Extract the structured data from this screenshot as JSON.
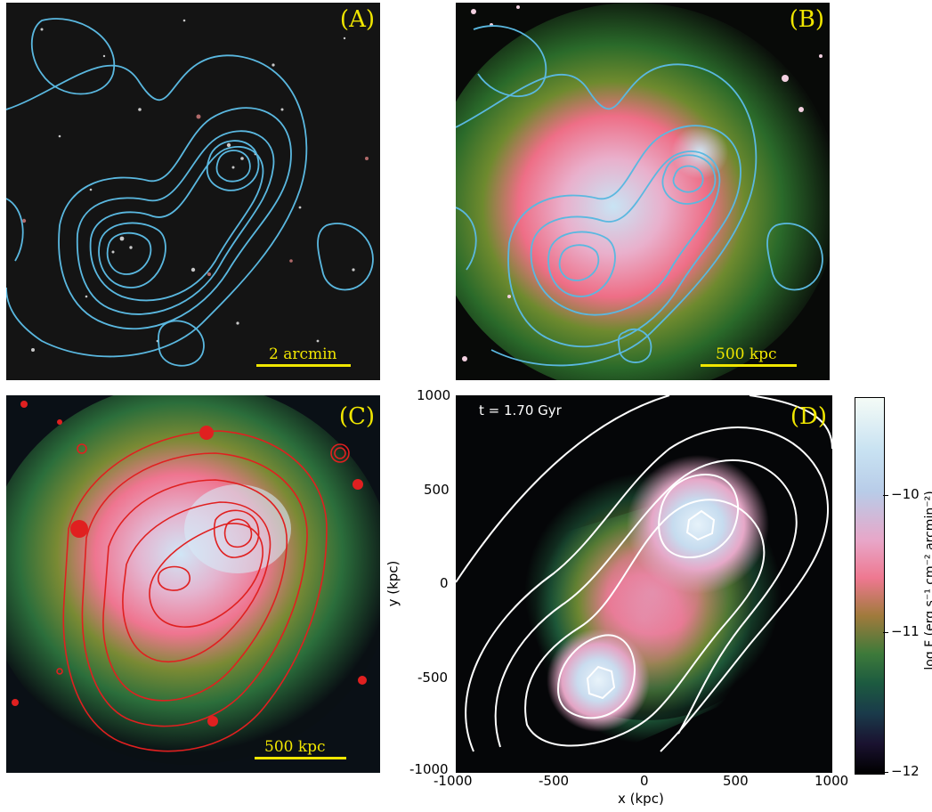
{
  "panels": {
    "a": {
      "label": "(A)",
      "scalebar": "2 arcmin"
    },
    "b": {
      "label": "(B)",
      "scalebar": "500 kpc"
    },
    "c": {
      "label": "(C)",
      "scalebar": "500 kpc"
    },
    "d": {
      "label": "(D)",
      "time": "t = 1.70 Gyr"
    }
  },
  "plot_d": {
    "xlabel": "x (kpc)",
    "ylabel": "y (kpc)",
    "xticks": [
      "-1000",
      "-500",
      "0",
      "500",
      "1000"
    ],
    "yticks": [
      "1000",
      "500",
      "0",
      "-500",
      "-1000"
    ]
  },
  "colorbar": {
    "label": "log F (erg s⁻¹ cm⁻² arcmin⁻²)",
    "ticks": [
      "−10",
      "−11",
      "−12"
    ]
  },
  "colors": {
    "label_yellow": "#f0e600",
    "contour_cyan": "#5ab8e0",
    "contour_red": "#e02020",
    "contour_white": "#ffffff"
  }
}
